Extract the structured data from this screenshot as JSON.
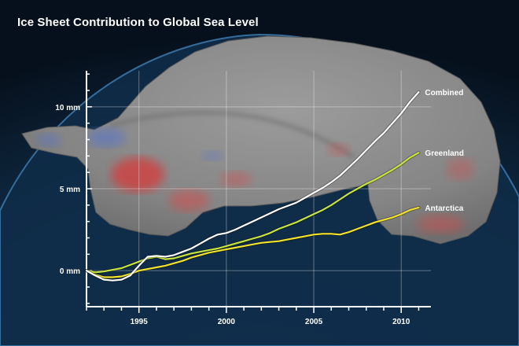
{
  "title": "Ice Sheet Contribution to Global Sea Level",
  "chart_data": {
    "type": "line",
    "title": "Ice Sheet Contribution to Global Sea Level",
    "xlabel": "",
    "ylabel": "",
    "xlim": [
      1992,
      2011.7
    ],
    "ylim": [
      -2.2,
      12.2
    ],
    "x_ticks": [
      1995,
      2000,
      2005,
      2010
    ],
    "y_ticks": [
      {
        "value": 0,
        "label": "0 mm"
      },
      {
        "value": 5,
        "label": "5 mm"
      },
      {
        "value": 10,
        "label": "10 mm"
      }
    ],
    "grid": true,
    "legend": "inline labels at line ends",
    "series": [
      {
        "name": "Combined",
        "color": "#ffffff",
        "x": [
          1992,
          1992.5,
          1993,
          1993.5,
          1994,
          1994.5,
          1995,
          1995.5,
          1996,
          1996.5,
          1997,
          1997.5,
          1998,
          1998.5,
          1999,
          1999.5,
          2000,
          2000.5,
          2001,
          2001.5,
          2002,
          2002.5,
          2003,
          2003.5,
          2004,
          2004.5,
          2005,
          2005.5,
          2006,
          2006.5,
          2007,
          2007.5,
          2008,
          2008.5,
          2009,
          2009.5,
          2010,
          2010.5,
          2011
        ],
        "values": [
          0,
          -0.3,
          -0.55,
          -0.6,
          -0.55,
          -0.3,
          0.3,
          0.85,
          0.9,
          0.85,
          0.95,
          1.15,
          1.35,
          1.65,
          1.95,
          2.2,
          2.3,
          2.5,
          2.75,
          3.0,
          3.25,
          3.5,
          3.75,
          3.95,
          4.15,
          4.45,
          4.75,
          5.05,
          5.4,
          5.8,
          6.3,
          6.8,
          7.35,
          7.9,
          8.4,
          9.0,
          9.6,
          10.3,
          10.9
        ]
      },
      {
        "name": "Greenland",
        "color": "#c8e43c",
        "x": [
          1992,
          1992.5,
          1993,
          1993.5,
          1994,
          1994.5,
          1995,
          1995.5,
          1996,
          1996.5,
          1997,
          1997.5,
          1998,
          1998.5,
          1999,
          1999.5,
          2000,
          2000.5,
          2001,
          2001.5,
          2002,
          2002.5,
          2003,
          2003.5,
          2004,
          2004.5,
          2005,
          2005.5,
          2006,
          2006.5,
          2007,
          2007.5,
          2008,
          2008.5,
          2009,
          2009.5,
          2010,
          2010.5,
          2011
        ],
        "values": [
          0,
          -0.1,
          -0.05,
          0.05,
          0.15,
          0.35,
          0.55,
          0.75,
          0.85,
          0.7,
          0.75,
          0.9,
          1.05,
          1.15,
          1.25,
          1.35,
          1.5,
          1.65,
          1.8,
          1.95,
          2.1,
          2.3,
          2.55,
          2.75,
          2.95,
          3.2,
          3.45,
          3.7,
          4.0,
          4.35,
          4.7,
          5.0,
          5.3,
          5.55,
          5.85,
          6.15,
          6.5,
          6.9,
          7.2
        ]
      },
      {
        "name": "Antarctica",
        "color": "#f2e22a",
        "x": [
          1992,
          1992.5,
          1993,
          1993.5,
          1994,
          1994.5,
          1995,
          1995.5,
          1996,
          1996.5,
          1997,
          1997.5,
          1998,
          1998.5,
          1999,
          1999.5,
          2000,
          2000.5,
          2001,
          2001.5,
          2002,
          2002.5,
          2003,
          2003.5,
          2004,
          2004.5,
          2005,
          2005.5,
          2006,
          2006.5,
          2007,
          2007.5,
          2008,
          2008.5,
          2009,
          2009.5,
          2010,
          2010.5,
          2011
        ],
        "values": [
          0,
          -0.25,
          -0.4,
          -0.4,
          -0.35,
          -0.2,
          0.0,
          0.1,
          0.2,
          0.3,
          0.45,
          0.6,
          0.8,
          0.95,
          1.1,
          1.2,
          1.3,
          1.4,
          1.5,
          1.6,
          1.7,
          1.75,
          1.8,
          1.9,
          2.0,
          2.1,
          2.2,
          2.25,
          2.25,
          2.2,
          2.35,
          2.55,
          2.75,
          2.95,
          3.1,
          3.25,
          3.45,
          3.7,
          3.85
        ]
      }
    ]
  },
  "colors": {
    "background": "#0b1a2a",
    "ice": "#8f8f8f",
    "axis": "#ffffff",
    "gain_region": "#5a74c8",
    "loss_region": "#d83a3a"
  }
}
